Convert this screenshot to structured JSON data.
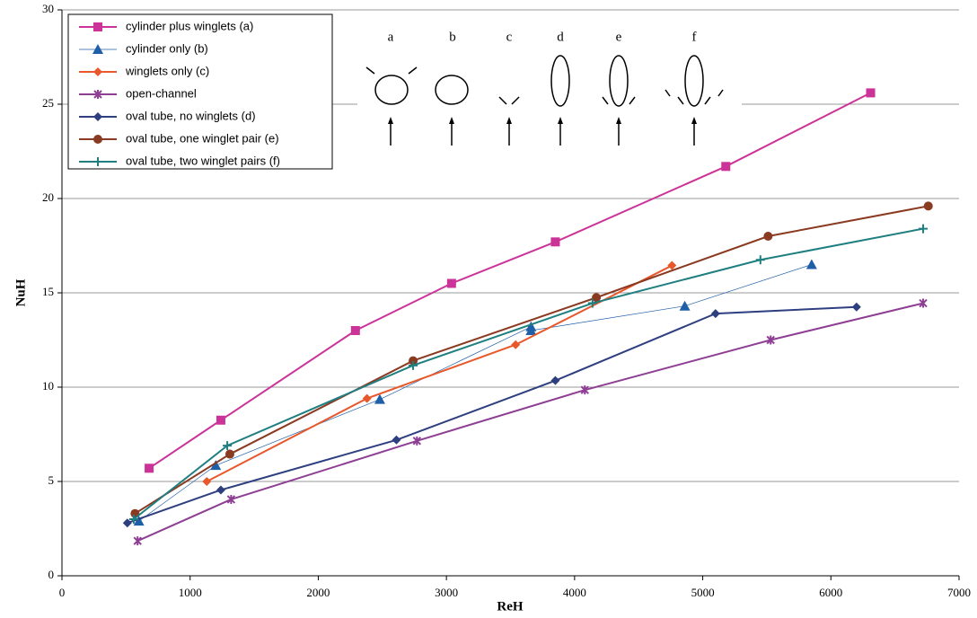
{
  "chart_data": {
    "type": "line",
    "x_label": "ReH",
    "y_label": "NuH",
    "xlim": [
      0,
      7000
    ],
    "xticks": [
      0,
      1000,
      2000,
      3000,
      4000,
      5000,
      6000,
      7000
    ],
    "ylim": [
      0,
      30
    ],
    "yticks": [
      0,
      5,
      10,
      15,
      20,
      25,
      30
    ],
    "grid": true,
    "legend": "upper left",
    "inset_labels": [
      "a",
      "b",
      "c",
      "d",
      "e",
      "f"
    ],
    "series": [
      {
        "name": "cylinder plus winglets (a)",
        "color": "#cc3399",
        "marker": "square",
        "line_width": 2,
        "x": [
          680,
          1240,
          2290,
          3040,
          3850,
          5180,
          6310
        ],
        "values": [
          5.7,
          8.25,
          13.0,
          15.5,
          17.7,
          21.7,
          25.6
        ]
      },
      {
        "name": "cylinder only (b)",
        "color": "#1f5fa8",
        "marker": "triangle",
        "line_width": 0.7,
        "x": [
          600,
          1200,
          2480,
          3660,
          3660,
          4860,
          5850
        ],
        "values": [
          2.9,
          5.85,
          9.35,
          13.2,
          13.0,
          14.3,
          16.5
        ]
      },
      {
        "name": "winglets only (c)",
        "color": "#e8582b",
        "marker": "diamond",
        "line_width": 2,
        "x": [
          1130,
          2380,
          3540,
          4760
        ],
        "values": [
          5.0,
          9.4,
          12.25,
          16.45
        ]
      },
      {
        "name": "open-channel",
        "color": "#8e3f94",
        "marker": "star",
        "line_width": 2,
        "x": [
          590,
          1320,
          2770,
          4080,
          5530,
          6720
        ],
        "values": [
          1.85,
          4.05,
          7.15,
          9.85,
          12.5,
          14.45
        ]
      },
      {
        "name": "oval tube, no winglets (d)",
        "color": "#2e3f80",
        "marker": "diamond",
        "line_width": 2,
        "x": [
          510,
          1240,
          2610,
          3850,
          5100,
          6200
        ],
        "values": [
          2.8,
          4.55,
          7.2,
          10.35,
          13.9,
          14.25
        ]
      },
      {
        "name": "oval tube, one winglet pair (e)",
        "color": "#8b3a22",
        "marker": "circle",
        "line_width": 2,
        "x": [
          570,
          1310,
          2740,
          4170,
          5510,
          6760
        ],
        "values": [
          3.3,
          6.45,
          11.4,
          14.75,
          18.0,
          19.6
        ]
      },
      {
        "name": "oval tube, two winglet pairs (f)",
        "color": "#1f7f80",
        "marker": "plus",
        "line_width": 2,
        "x": [
          560,
          1290,
          2740,
          4140,
          5450,
          6720
        ],
        "values": [
          3.0,
          6.9,
          11.15,
          14.45,
          16.75,
          18.4
        ]
      }
    ]
  }
}
